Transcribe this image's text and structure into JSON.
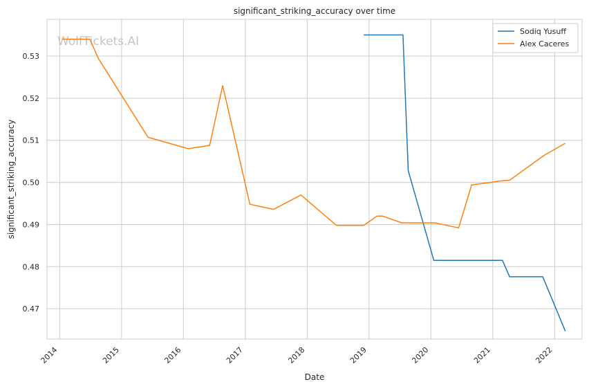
{
  "watermark": "WolfTickets.AI",
  "chart_data": {
    "type": "line",
    "title": "significant_striking_accuracy over time",
    "xlabel": "Date",
    "ylabel": "significant_striking_accuracy",
    "x_ticks": [
      "2014",
      "2015",
      "2016",
      "2017",
      "2018",
      "2019",
      "2020",
      "2021",
      "2022"
    ],
    "y_ticks": [
      "0.47",
      "0.48",
      "0.49",
      "0.50",
      "0.51",
      "0.52",
      "0.53"
    ],
    "xlim": [
      "2013-10-18",
      "2022-06-12"
    ],
    "ylim": [
      0.4628,
      0.5387
    ],
    "grid": true,
    "legend_position": "top-right",
    "series": [
      {
        "name": "Sodiq Yusuff",
        "color": "#1f77b4",
        "points": [
          [
            "2018-12-01",
            0.535
          ],
          [
            "2019-07-20",
            0.535
          ],
          [
            "2019-08-20",
            0.5028
          ],
          [
            "2020-01-18",
            0.4815
          ],
          [
            "2021-02-27",
            0.4815
          ],
          [
            "2021-04-10",
            0.4776
          ],
          [
            "2021-10-23",
            0.4776
          ],
          [
            "2022-03-05",
            0.4647
          ]
        ]
      },
      {
        "name": "Alex Caceres",
        "color": "#ff7f0e",
        "points": [
          [
            "2014-01-15",
            0.534
          ],
          [
            "2014-06-28",
            0.534
          ],
          [
            "2014-08-16",
            0.5295
          ],
          [
            "2015-06-06",
            0.5107
          ],
          [
            "2016-01-30",
            0.508
          ],
          [
            "2016-06-04",
            0.5088
          ],
          [
            "2016-08-20",
            0.523
          ],
          [
            "2017-01-28",
            0.4948
          ],
          [
            "2017-06-17",
            0.4936
          ],
          [
            "2017-11-25",
            0.497
          ],
          [
            "2018-06-23",
            0.4898
          ],
          [
            "2018-12-01",
            0.4898
          ],
          [
            "2019-02-17",
            0.492
          ],
          [
            "2019-03-23",
            0.492
          ],
          [
            "2019-07-13",
            0.4904
          ],
          [
            "2020-01-25",
            0.4904
          ],
          [
            "2020-06-13",
            0.4892
          ],
          [
            "2020-08-29",
            0.4994
          ],
          [
            "2021-02-27",
            0.5004
          ],
          [
            "2021-04-10",
            0.5005
          ],
          [
            "2021-10-30",
            0.5064
          ],
          [
            "2022-03-05",
            0.5093
          ]
        ]
      }
    ]
  }
}
